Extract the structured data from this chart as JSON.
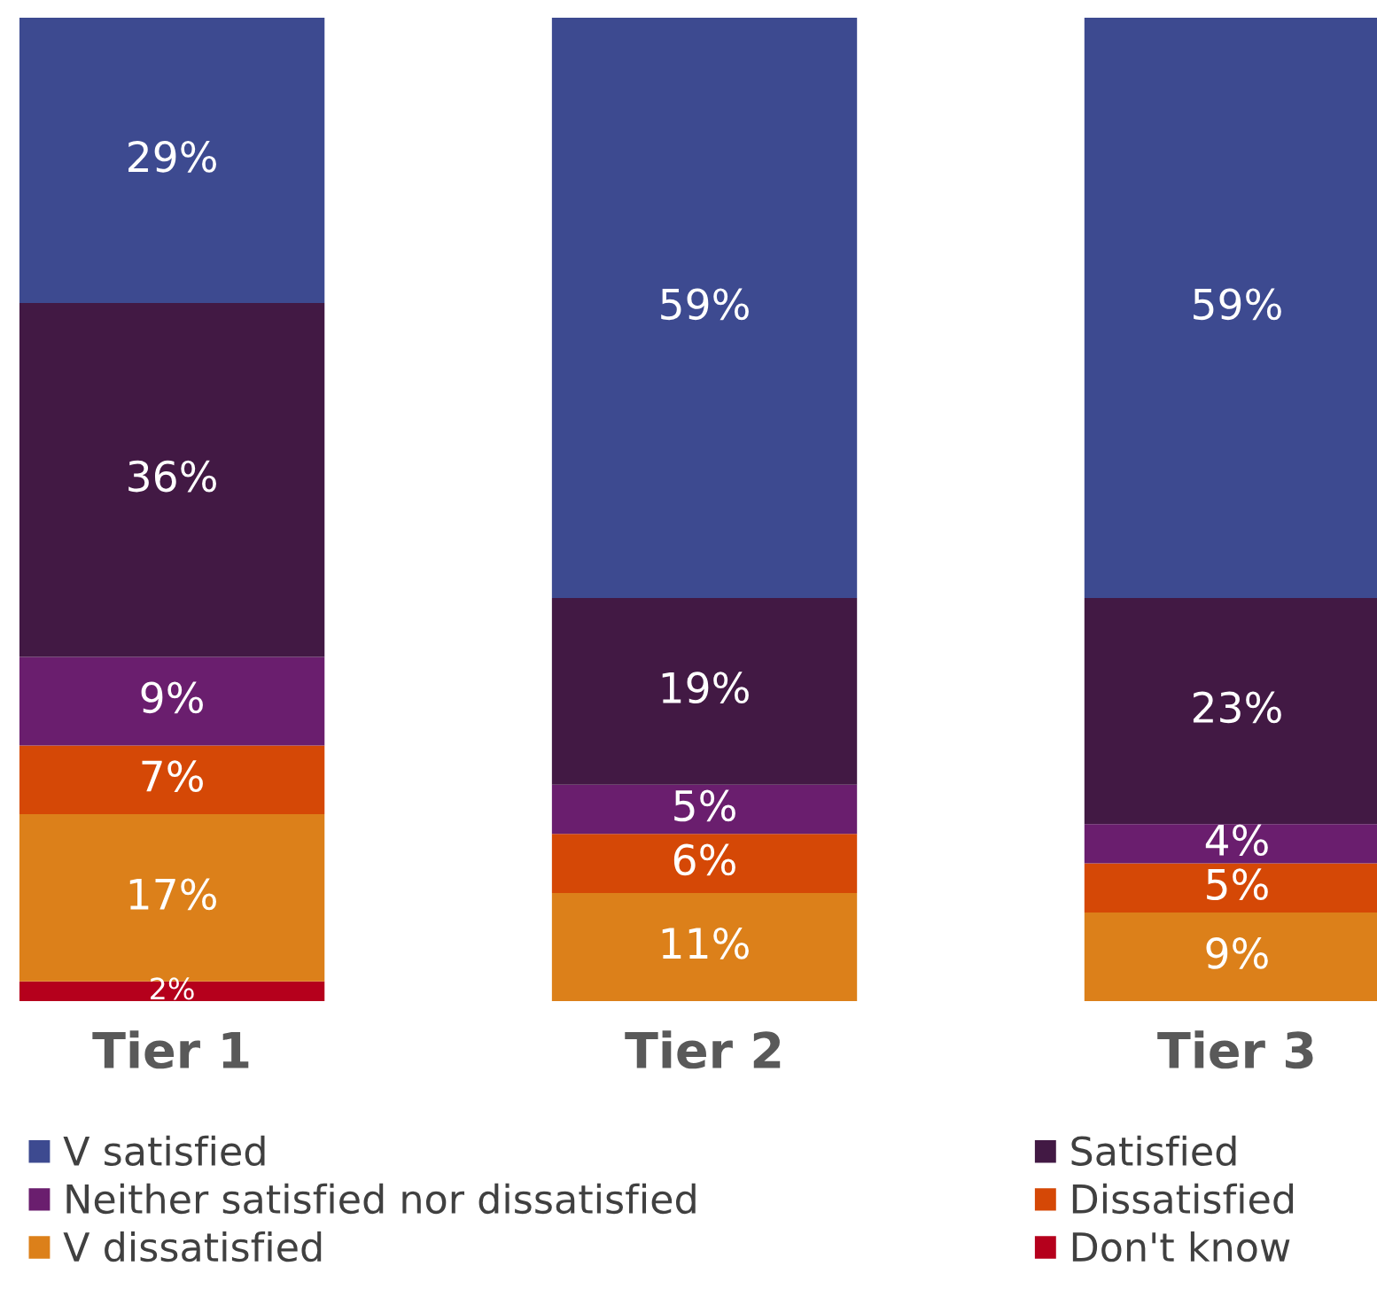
{
  "chart_data": {
    "type": "bar",
    "stacked": true,
    "legend": "bottom",
    "categories": [
      "Tier 1",
      "Tier 2",
      "Tier 3"
    ],
    "series": [
      {
        "name": "Don't know",
        "color": "#b5001c",
        "values": [
          2,
          null,
          null
        ],
        "value_labels": [
          "2%",
          null,
          null
        ]
      },
      {
        "name": "V dissatisfied",
        "color": "#dc801a",
        "values": [
          17,
          11,
          9
        ],
        "value_labels": [
          "17%",
          "11%",
          "9%"
        ]
      },
      {
        "name": "Dissatisfied",
        "color": "#d54806",
        "values": [
          7,
          6,
          5
        ],
        "value_labels": [
          "7%",
          "6%",
          "5%"
        ]
      },
      {
        "name": "Neither satisfied nor dissatisfied",
        "color": "#6a1e6e",
        "values": [
          9,
          5,
          4
        ],
        "value_labels": [
          "9%",
          "5%",
          "4%"
        ]
      },
      {
        "name": "Satisfied",
        "color": "#421944",
        "values": [
          36,
          19,
          23
        ],
        "value_labels": [
          "36%",
          "19%",
          "23%"
        ]
      },
      {
        "name": "V satisfied",
        "color": "#3d4a90",
        "values": [
          29,
          59,
          59
        ],
        "value_labels": [
          "29%",
          "59%",
          "59%"
        ]
      }
    ]
  }
}
